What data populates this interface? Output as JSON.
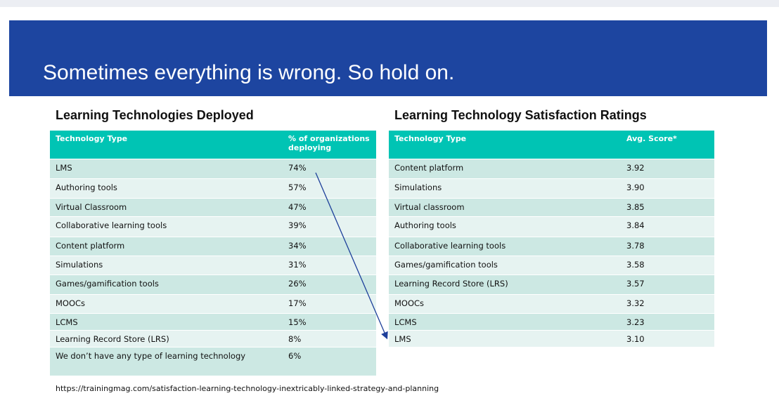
{
  "title": "Sometimes everything is wrong. So hold on.",
  "left_table": {
    "title": "Learning Technologies Deployed",
    "header": [
      "Technology Type",
      "% of organizations deploying"
    ],
    "rows": [
      [
        "LMS",
        "74%"
      ],
      [
        "Authoring tools",
        "57%"
      ],
      [
        "Virtual Classroom",
        "47%"
      ],
      [
        "Collaborative learning tools",
        "39%"
      ],
      [
        "Content platform",
        "34%"
      ],
      [
        "Simulations",
        "31%"
      ],
      [
        "Games/gamification tools",
        "26%"
      ],
      [
        "MOOCs",
        "17%"
      ],
      [
        "LCMS",
        "15%"
      ],
      [
        "Learning Record Store (LRS)",
        "8%"
      ],
      [
        "We don’t have any type of learning technology",
        "6%"
      ]
    ]
  },
  "right_table": {
    "title": "Learning Technology Satisfaction Ratings",
    "header": [
      "Technology Type",
      "Avg. Score*"
    ],
    "rows": [
      [
        "Content platform",
        "3.92"
      ],
      [
        "Simulations",
        "3.90"
      ],
      [
        "Virtual classroom",
        "3.85"
      ],
      [
        "Authoring tools",
        "3.84"
      ],
      [
        "Collaborative learning tools",
        "3.78"
      ],
      [
        "Games/gamification tools",
        "3.58"
      ],
      [
        "Learning Record Store (LRS)",
        "3.57"
      ],
      [
        "MOOCs",
        "3.32"
      ],
      [
        "LCMS",
        "3.23"
      ],
      [
        "LMS",
        "3.10"
      ]
    ]
  },
  "source": "https://trainingmag.com/satisfaction-learning-technology-inextricably-linked-strategy-and-planning"
}
